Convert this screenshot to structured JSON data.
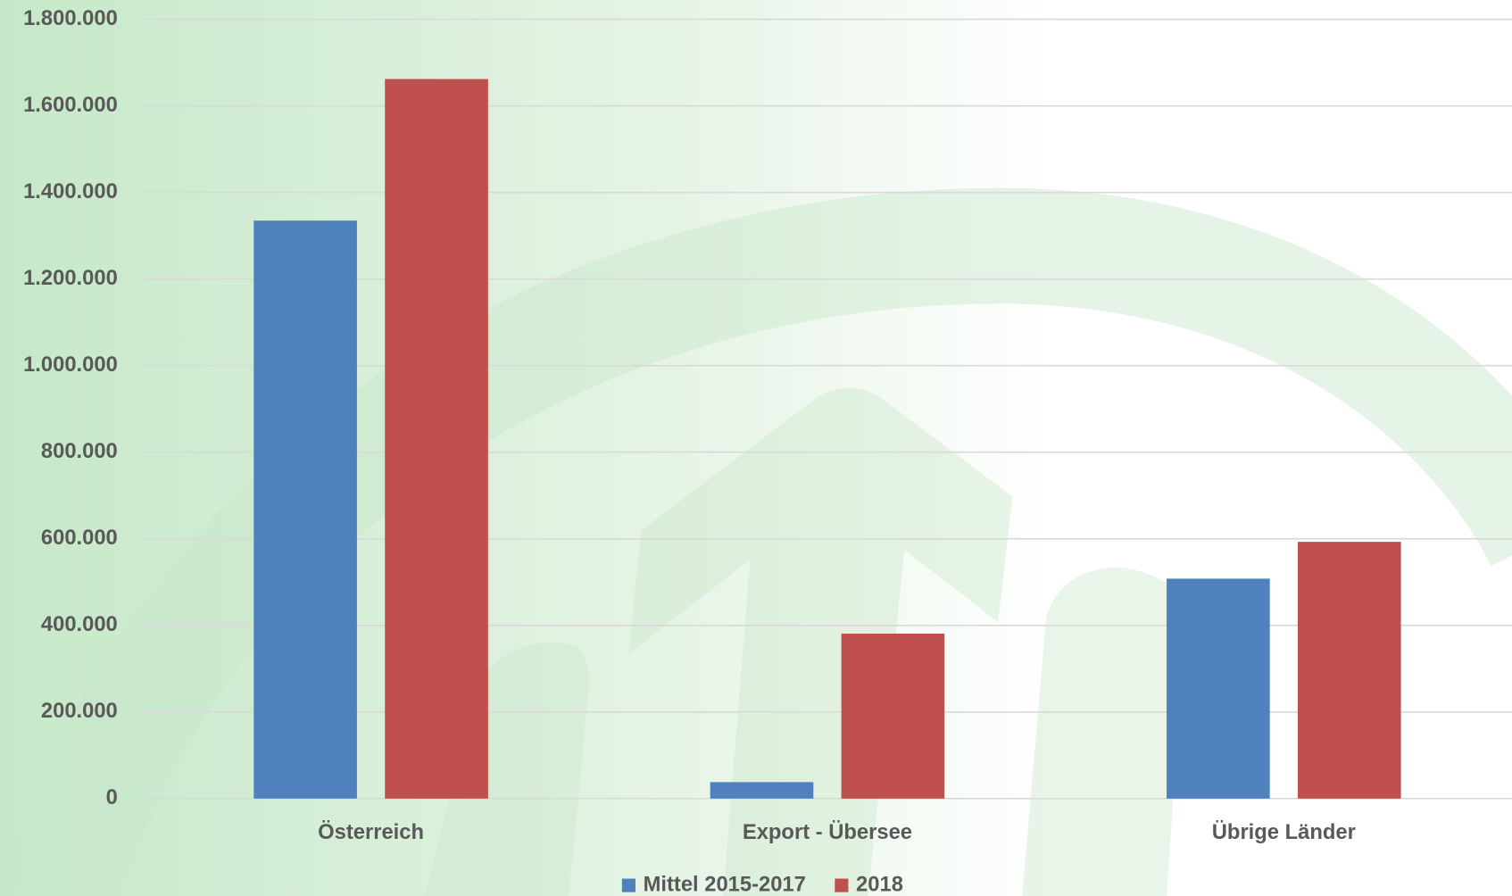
{
  "chart_data": {
    "type": "bar",
    "categories": [
      "Österreich",
      "Export - Übersee",
      "Übrige Länder"
    ],
    "series": [
      {
        "name": "Mittel 2015-2017",
        "color": "#4f81bd",
        "values": [
          1335000,
          38000,
          508000
        ]
      },
      {
        "name": "2018",
        "color": "#c0504d",
        "values": [
          1662000,
          381000,
          593000
        ]
      }
    ],
    "ylim": [
      0,
      1800000
    ],
    "yticks": [
      0,
      {
        "value": 200000,
        "label": "200.000"
      },
      {
        "value": 400000,
        "label": "400.000"
      },
      {
        "value": 600000,
        "label": "600.000"
      },
      {
        "value": 800000,
        "label": "800.000"
      },
      {
        "value": 1000000,
        "label": "1.000.000"
      },
      {
        "value": 1200000,
        "label": "1.200.000"
      },
      {
        "value": 1400000,
        "label": "1.400.000"
      },
      {
        "value": 1600000,
        "label": "1.600.000"
      },
      {
        "value": 1800000,
        "label": "1.800.000"
      }
    ],
    "grid": true,
    "legend": "bottom"
  }
}
